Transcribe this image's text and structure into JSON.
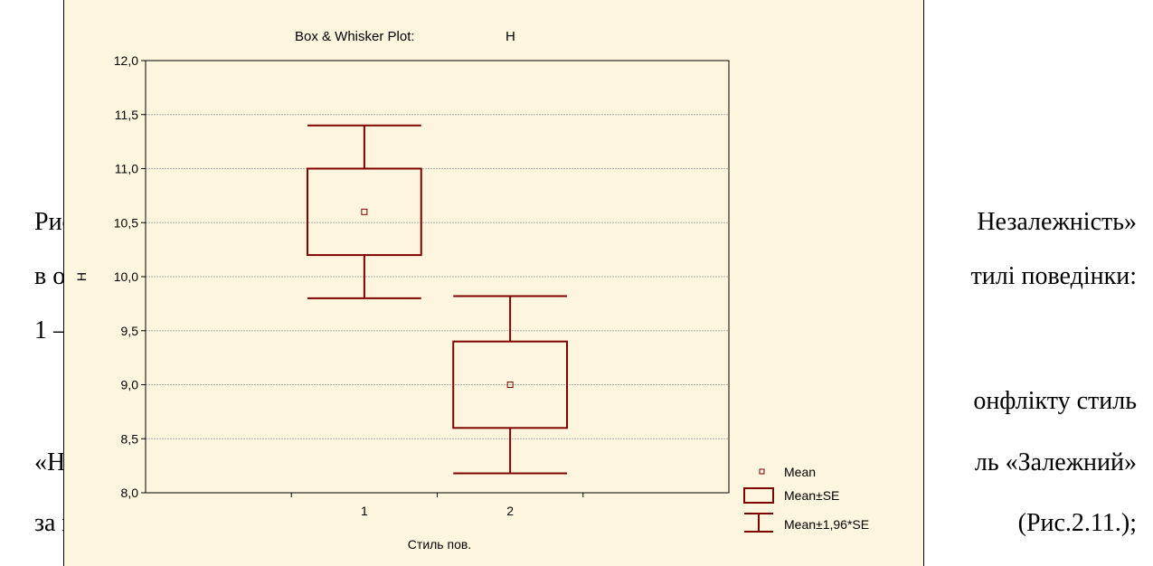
{
  "document": {
    "lines": [
      {
        "left": "Рис",
        "right": "Незалежність»"
      },
      {
        "left": "в ос",
        "right": "тилі поведінки:"
      },
      {
        "left": "1 –",
        "right": ""
      },
      {
        "left": "",
        "right": "онфлікту стиль"
      },
      {
        "left": "«Не",
        "right": "ль «Залежний»"
      },
      {
        "left": "за м",
        "right": "(Рис.2.11.);"
      }
    ]
  },
  "chart_data": {
    "type": "box",
    "title": "Box & Whisker Plot:",
    "variable": "H",
    "xlabel": "Стиль пов.",
    "ylabel": "H",
    "categories": [
      "1",
      "2"
    ],
    "ylim": [
      8.0,
      12.0
    ],
    "yticks": [
      8.0,
      8.5,
      9.0,
      9.5,
      10.0,
      10.5,
      11.0,
      11.5,
      12.0
    ],
    "ytick_labels": [
      "8,0",
      "8,5",
      "9,0",
      "9,5",
      "10,0",
      "10,5",
      "11,0",
      "11,5",
      "12,0"
    ],
    "groups": [
      {
        "category": "1",
        "mean": 10.6,
        "se_low": 10.2,
        "se_high": 11.0,
        "ci_low": 9.8,
        "ci_high": 11.4
      },
      {
        "category": "2",
        "mean": 9.0,
        "se_low": 8.6,
        "se_high": 9.4,
        "ci_low": 8.18,
        "ci_high": 9.82
      }
    ],
    "grid": true,
    "legend": {
      "placement": "bottom-right",
      "entries": [
        "Mean",
        "Mean±SE",
        "Mean±1,96*SE"
      ]
    },
    "colors": {
      "series": "#7f0000",
      "background": "#fdf5dd",
      "grid": "#b0b0b0"
    }
  }
}
